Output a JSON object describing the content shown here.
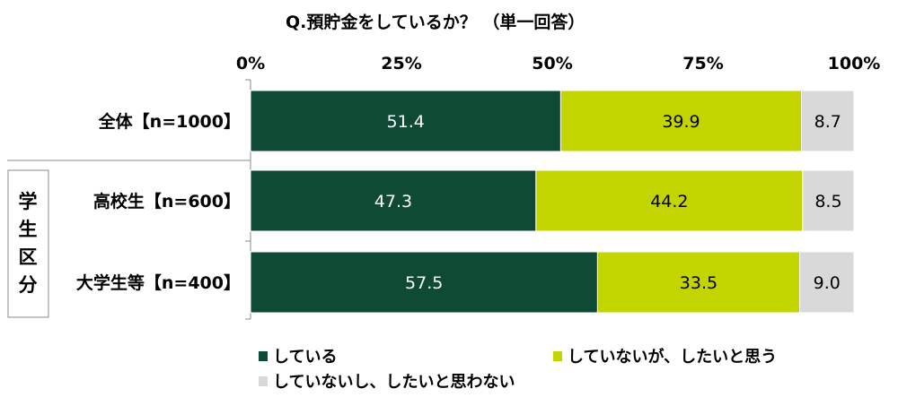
{
  "chart_data": {
    "type": "bar",
    "orientation": "horizontal",
    "stacked": true,
    "title": "Q.預貯金をしているか？ （単一回答）",
    "tick_labels": [
      "0%",
      "25%",
      "50%",
      "75%",
      "100%"
    ],
    "xlim": [
      0,
      100
    ],
    "grid": false,
    "group_label": "学生区分",
    "categories": [
      "全体【n=1000】",
      "高校生【n=600】",
      "大学生等【n=400】"
    ],
    "series": [
      {
        "name": "している",
        "color": "#0f4a35",
        "values": [
          51.4,
          47.3,
          57.5
        ],
        "labels": [
          "51.4",
          "47.3",
          "57.5"
        ]
      },
      {
        "name": "していないが、したいと思う",
        "color": "#c3d500",
        "values": [
          39.9,
          44.2,
          33.5
        ],
        "labels": [
          "39.9",
          "44.2",
          "33.5"
        ]
      },
      {
        "name": "していないし、したいと思わない",
        "color": "#d9d9d9",
        "values": [
          8.7,
          8.5,
          9.0
        ],
        "labels": [
          "8.7",
          "8.5",
          "9.0"
        ]
      }
    ],
    "legend_position": "bottom"
  }
}
